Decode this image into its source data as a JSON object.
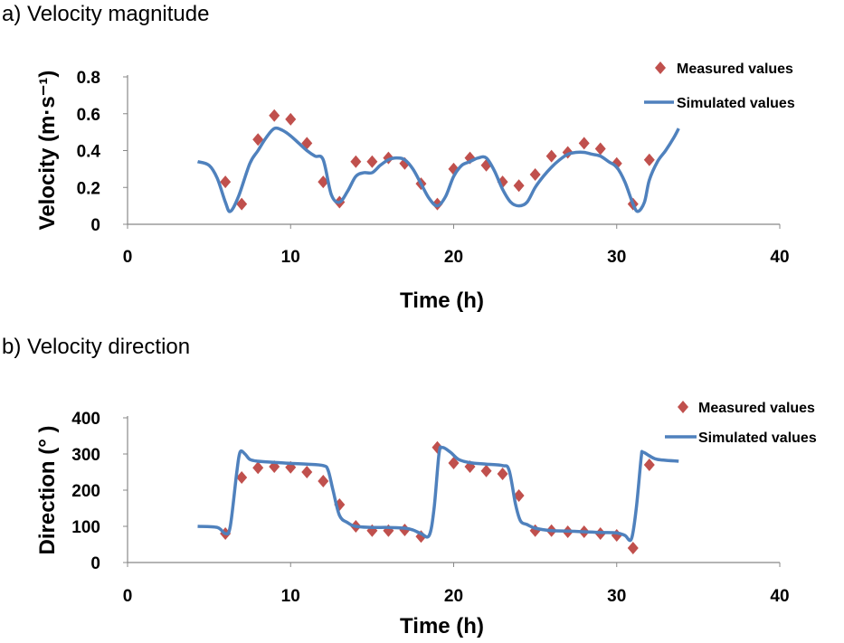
{
  "colors": {
    "measured": "#C0504D",
    "simulated": "#4F81BD",
    "axis": "#888888"
  },
  "chart_data": [
    {
      "type": "scatter+line",
      "title": "a) Velocity magnitude",
      "xlabel": "Time (h)",
      "ylabel": "Velocity (m·s⁻¹)",
      "xlim": [
        0,
        40
      ],
      "ylim": [
        0,
        0.8
      ],
      "xticks": [
        "0",
        "10",
        "20",
        "30",
        "40"
      ],
      "yticks": [
        "0",
        "0.2",
        "0.4",
        "0.6",
        "0.8"
      ],
      "grid": false,
      "legend": "top-right",
      "series": [
        {
          "name": "Measured values",
          "kind": "marker",
          "x": [
            6,
            7,
            8,
            9,
            10,
            11,
            12,
            13,
            14,
            15,
            16,
            17,
            18,
            19,
            20,
            21,
            22,
            23,
            24,
            25,
            26,
            27,
            28,
            29,
            30,
            31,
            32
          ],
          "y": [
            0.23,
            0.11,
            0.46,
            0.59,
            0.57,
            0.44,
            0.23,
            0.12,
            0.34,
            0.34,
            0.36,
            0.33,
            0.22,
            0.11,
            0.3,
            0.36,
            0.32,
            0.23,
            0.21,
            0.27,
            0.37,
            0.39,
            0.44,
            0.41,
            0.33,
            0.11,
            0.35
          ]
        },
        {
          "name": "Simulated values",
          "kind": "line",
          "x": [
            4.3,
            5,
            5.5,
            6,
            6.3,
            6.8,
            7.5,
            8,
            8.5,
            9,
            9.5,
            10,
            10.5,
            11,
            11.5,
            12,
            12.5,
            13,
            13.5,
            14,
            14.5,
            15,
            15.5,
            16,
            16.5,
            17,
            17.5,
            18,
            18.5,
            19,
            19.5,
            20,
            20.5,
            21,
            21.5,
            22,
            22.5,
            23,
            23.5,
            24,
            24.5,
            25,
            25.5,
            26,
            26.5,
            27,
            27.5,
            28,
            28.5,
            29,
            29.5,
            30,
            30.5,
            31,
            31.3,
            31.7,
            32,
            32.5,
            33,
            33.5,
            33.8
          ],
          "y": [
            0.34,
            0.32,
            0.25,
            0.12,
            0.07,
            0.15,
            0.33,
            0.4,
            0.47,
            0.52,
            0.51,
            0.48,
            0.44,
            0.4,
            0.37,
            0.35,
            0.16,
            0.12,
            0.18,
            0.26,
            0.28,
            0.28,
            0.32,
            0.35,
            0.36,
            0.35,
            0.3,
            0.22,
            0.14,
            0.1,
            0.15,
            0.26,
            0.32,
            0.34,
            0.36,
            0.36,
            0.29,
            0.19,
            0.12,
            0.1,
            0.12,
            0.2,
            0.26,
            0.31,
            0.35,
            0.38,
            0.39,
            0.39,
            0.38,
            0.37,
            0.34,
            0.31,
            0.23,
            0.11,
            0.07,
            0.12,
            0.24,
            0.34,
            0.4,
            0.47,
            0.52
          ]
        }
      ]
    },
    {
      "type": "scatter+line",
      "title": "b) Velocity direction",
      "xlabel": "Time (h)",
      "ylabel": "Direction (°  )",
      "xlim": [
        0,
        40
      ],
      "ylim": [
        0,
        400
      ],
      "xticks": [
        "0",
        "10",
        "20",
        "30",
        "40"
      ],
      "yticks": [
        "0",
        "100",
        "200",
        "300",
        "400"
      ],
      "grid": false,
      "legend": "top-right",
      "series": [
        {
          "name": "Measured values",
          "kind": "marker",
          "x": [
            6,
            7,
            8,
            9,
            10,
            11,
            12,
            13,
            14,
            15,
            16,
            17,
            18,
            19,
            20,
            21,
            22,
            23,
            24,
            25,
            26,
            27,
            28,
            29,
            30,
            31,
            32
          ],
          "y": [
            80,
            235,
            262,
            265,
            263,
            250,
            225,
            160,
            100,
            88,
            88,
            90,
            72,
            318,
            275,
            265,
            253,
            245,
            185,
            88,
            88,
            85,
            85,
            80,
            75,
            40,
            270
          ]
        },
        {
          "name": "Simulated values",
          "kind": "line",
          "x": [
            4.3,
            5.5,
            6,
            6.3,
            6.7,
            6.9,
            7.2,
            7.5,
            8,
            9,
            10,
            11,
            12,
            12.3,
            12.6,
            13,
            13.5,
            14,
            15,
            16,
            17,
            17.5,
            18,
            18.5,
            18.8,
            19.1,
            19.3,
            19.8,
            20.3,
            21,
            22,
            23,
            23.4,
            23.8,
            24.1,
            24.5,
            25,
            26,
            27,
            28,
            29,
            30,
            30.5,
            30.9,
            31.2,
            31.5,
            31.6,
            32,
            32.5,
            33.8
          ],
          "y": [
            100,
            97,
            80,
            100,
            250,
            305,
            300,
            285,
            280,
            277,
            274,
            272,
            268,
            255,
            200,
            130,
            110,
            100,
            97,
            97,
            95,
            90,
            80,
            75,
            150,
            300,
            318,
            305,
            285,
            276,
            272,
            268,
            255,
            160,
            115,
            105,
            95,
            88,
            87,
            85,
            83,
            82,
            75,
            65,
            150,
            290,
            305,
            295,
            285,
            280
          ]
        }
      ]
    }
  ]
}
